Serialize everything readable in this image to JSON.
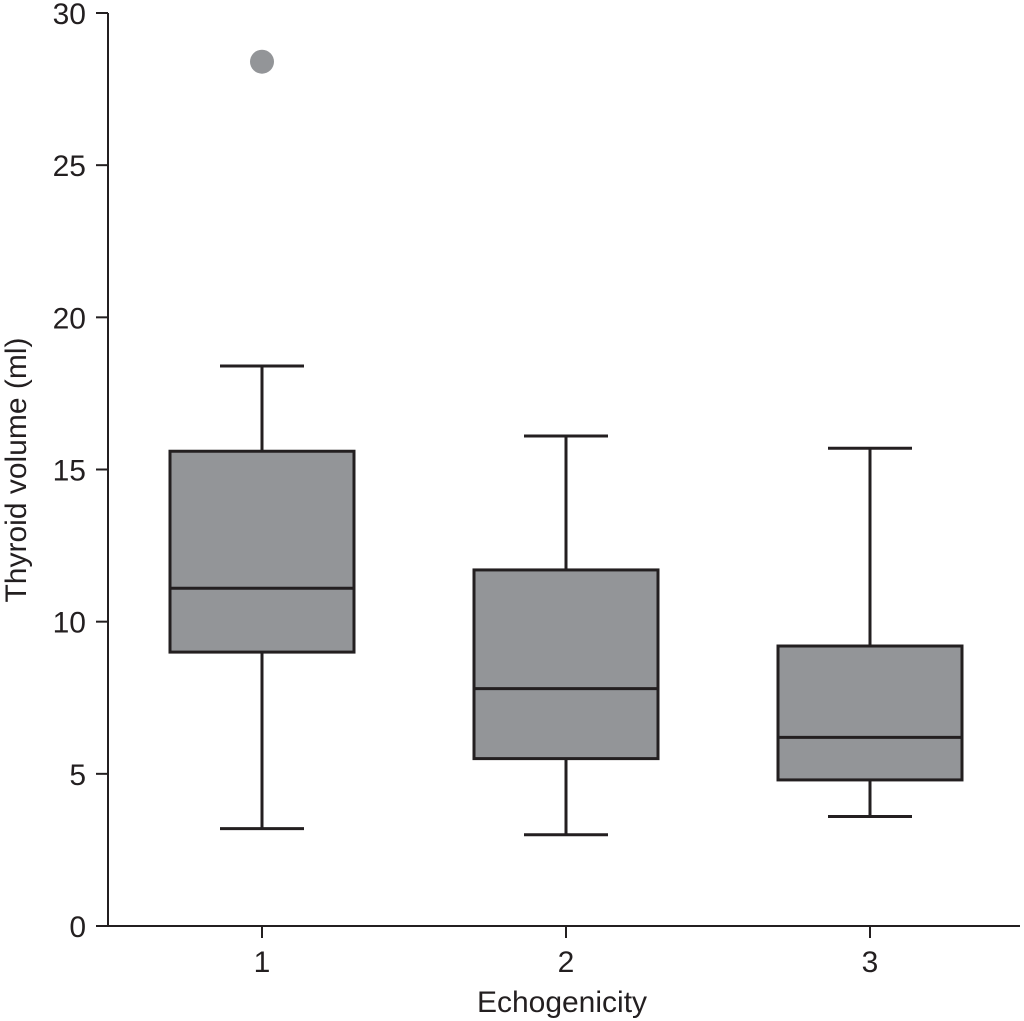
{
  "chart_data": {
    "type": "boxplot",
    "title": "",
    "xlabel": "Echogenicity",
    "ylabel": "Thyroid volume (ml)",
    "ylim": [
      0,
      30
    ],
    "yticks": [
      0,
      5,
      10,
      15,
      20,
      25,
      30
    ],
    "grid": false,
    "categories": [
      "1",
      "2",
      "3"
    ],
    "boxes": [
      {
        "category": "1",
        "whisker_low": 3.2,
        "q1": 9.0,
        "median": 11.1,
        "q3": 15.6,
        "whisker_high": 18.4,
        "outliers": [
          28.4
        ]
      },
      {
        "category": "2",
        "whisker_low": 3.0,
        "q1": 5.5,
        "median": 7.8,
        "q3": 11.7,
        "whisker_high": 16.1,
        "outliers": []
      },
      {
        "category": "3",
        "whisker_low": 3.6,
        "q1": 4.8,
        "median": 6.2,
        "q3": 9.2,
        "whisker_high": 15.7,
        "outliers": []
      }
    ],
    "colors": {
      "box_fill": "#939598",
      "stroke": "#231f20",
      "outlier": "#939598"
    }
  }
}
